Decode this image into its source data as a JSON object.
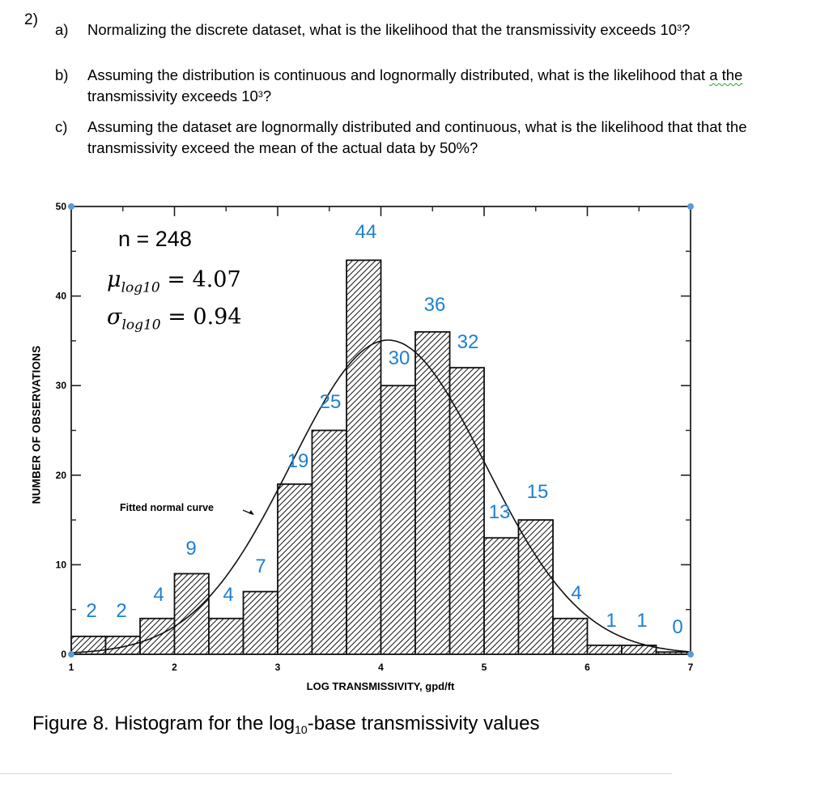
{
  "question": {
    "number": "2)",
    "parts": [
      {
        "label": "a)",
        "text_before": "Normalizing the discrete dataset, what is the likelihood that the transmissivity exceeds 10",
        "sup": "3",
        "text_after": "?"
      },
      {
        "label": "b)",
        "text_before": "Assuming the distribution is continuous and lognormally distributed, what is the likelihood that ",
        "flagged": "a the",
        "text_mid": " transmissivity exceeds 10",
        "sup": "3",
        "text_after": "?"
      },
      {
        "label": "c)",
        "text": "Assuming the dataset are lognormally distributed and continuous, what is the likelihood that that the transmissivity exceed the mean of the actual data by 50%?"
      }
    ]
  },
  "figure": {
    "stats": {
      "n": "n = 248",
      "mu_symbol": "μ",
      "mu_sub": "log10",
      "mu_value": " = 4.07",
      "sigma_symbol": "σ",
      "sigma_sub": "log10",
      "sigma_value": " = 0.94"
    },
    "fit_label": "Fitted normal curve",
    "ylabel": "NUMBER OF OBSERVATIONS",
    "xlabel": "LOG TRANSMISSIVITY, gpd/ft",
    "caption_before": "Figure 8.  Histogram for the log",
    "caption_sub": "10",
    "caption_after": "-base transmissivity values"
  },
  "colors": {
    "annotation_blue": "#1f7fd0",
    "corner_dot": "#5b9bd5",
    "ink": "#111111"
  },
  "chart_data": {
    "type": "bar",
    "title": "Histogram for the log10-base transmissivity values",
    "xlabel": "LOG TRANSMISSIVITY, gpd/ft",
    "ylabel": "NUMBER OF OBSERVATIONS",
    "xlim": [
      1,
      7
    ],
    "ylim": [
      0,
      50
    ],
    "xticks": [
      1,
      2,
      3,
      4,
      5,
      6,
      7
    ],
    "yticks": [
      0,
      10,
      20,
      30,
      40,
      50
    ],
    "bin_width": 0.3333,
    "bin_edges": [
      1.0,
      1.333,
      1.667,
      2.0,
      2.333,
      2.667,
      3.0,
      3.333,
      3.667,
      4.0,
      4.333,
      4.667,
      5.0,
      5.333,
      5.667,
      6.0,
      6.333,
      6.667,
      7.0
    ],
    "values": [
      2,
      2,
      4,
      9,
      4,
      7,
      19,
      25,
      44,
      30,
      36,
      32,
      13,
      15,
      4,
      1,
      1,
      0
    ],
    "annotations": [
      "n = 248",
      "μ_log10 = 4.07",
      "σ_log10 = 0.94",
      "Fitted normal curve"
    ],
    "fitted_curve": {
      "type": "normal",
      "mean": 4.07,
      "sd": 0.94,
      "n": 248
    },
    "grid": false,
    "legend": null
  }
}
